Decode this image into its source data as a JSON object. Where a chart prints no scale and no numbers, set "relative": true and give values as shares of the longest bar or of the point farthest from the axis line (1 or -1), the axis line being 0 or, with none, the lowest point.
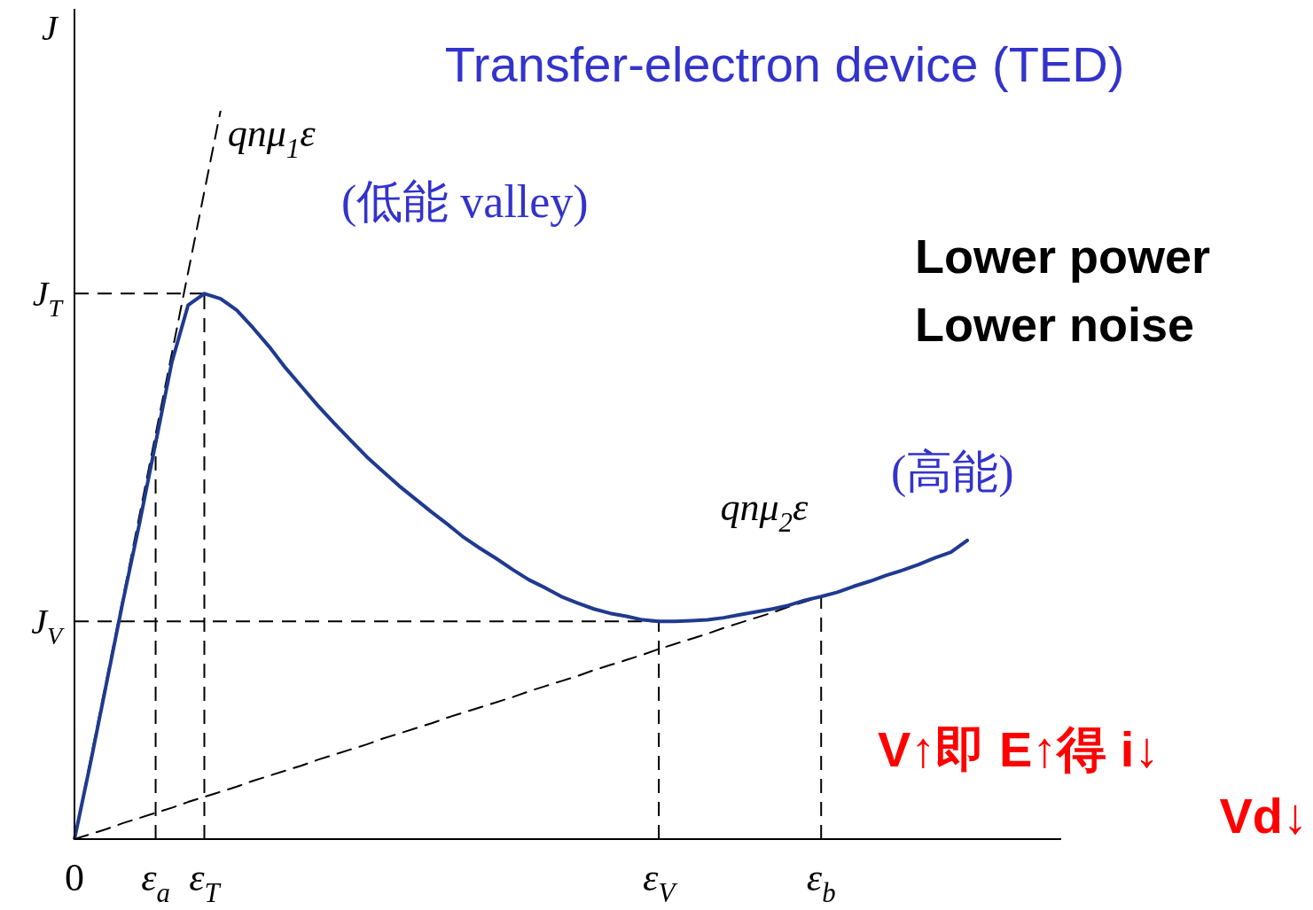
{
  "chart_data": {
    "type": "line",
    "relative": true,
    "title": "Transfer-electron device (TED)",
    "ylabel": "J",
    "legend": false,
    "grid": false,
    "marker": "none",
    "categories": [
      "0",
      null,
      null,
      null,
      null,
      "ε$_{a}$",
      null,
      null,
      "ε$_{T}$",
      null,
      null,
      null,
      null,
      null,
      null,
      null,
      null,
      null,
      null,
      null,
      null,
      null,
      null,
      null,
      null,
      null,
      null,
      null,
      null,
      null,
      null,
      null,
      null,
      null,
      null,
      null,
      "ε$_{V}$",
      null,
      null,
      null,
      null,
      null,
      null,
      null,
      null,
      null,
      "ε$_{b}$",
      null,
      null,
      null,
      null,
      null,
      null,
      null,
      null,
      null
    ],
    "series": [
      {
        "color": "#1f3a8f",
        "line_style": "solid",
        "values": [
          0,
          0.106,
          0.217,
          0.328,
          0.433,
          0.544,
          0.655,
          0.733,
          0.749,
          0.742,
          0.726,
          0.702,
          0.676,
          0.647,
          0.621,
          0.595,
          0.571,
          0.548,
          0.525,
          0.505,
          0.485,
          0.467,
          0.449,
          0.432,
          0.414,
          0.399,
          0.385,
          0.37,
          0.356,
          0.345,
          0.333,
          0.324,
          0.316,
          0.31,
          0.306,
          0.301,
          0.299,
          0.299,
          0.3,
          0.301,
          0.304,
          0.308,
          0.312,
          0.316,
          0.321,
          0.328,
          0.333,
          0.339,
          0.347,
          0.354,
          0.362,
          0.369,
          0.377,
          0.386,
          0.394,
          0.41
        ]
      },
      {
        "name": "qnμ$_{1}$ε",
        "color": "#000000",
        "line_style": "dashed",
        "values": [
          0,
          0.111,
          0.222,
          0.333,
          0.444,
          0.556,
          0.667,
          0.778,
          0.889,
          1,
          null,
          null,
          null,
          null,
          null,
          null,
          null,
          null,
          null,
          null,
          null,
          null,
          null,
          null,
          null,
          null,
          null,
          null,
          null,
          null,
          null,
          null,
          null,
          null,
          null,
          null,
          null,
          null,
          null,
          null,
          null,
          null,
          null,
          null,
          null,
          null,
          null,
          null,
          null,
          null,
          null,
          null,
          null,
          null,
          null,
          null
        ]
      },
      {
        "name": "qnμ$_{2}$ε",
        "color": "#000000",
        "line_style": "dashed",
        "values": [
          0,
          0.007,
          0.014,
          0.022,
          0.029,
          0.036,
          0.043,
          0.051,
          0.058,
          0.065,
          0.072,
          0.08,
          0.087,
          0.094,
          0.101,
          0.109,
          0.116,
          0.123,
          0.13,
          0.138,
          0.145,
          0.152,
          0.159,
          0.167,
          0.174,
          0.181,
          0.188,
          0.195,
          0.203,
          0.21,
          0.217,
          0.224,
          0.232,
          0.239,
          0.246,
          0.253,
          0.261,
          0.268,
          0.275,
          0.282,
          0.29,
          0.297,
          0.304,
          0.311,
          0.319,
          0.326,
          0.333,
          null,
          null,
          null,
          null,
          null,
          null,
          null,
          null,
          null
        ]
      }
    ],
    "ref_lines": [
      {
        "axis": "y",
        "value": 0.749,
        "label": "J$_{T}$",
        "color": "#000000",
        "line_style": "dashed"
      },
      {
        "axis": "y",
        "value": 0.299,
        "label": "J$_{V}$",
        "color": "#000000",
        "line_style": "dashed"
      },
      {
        "axis": "x",
        "value": "ε$_{a}$",
        "color": "#000000",
        "line_style": "dashed"
      },
      {
        "axis": "x",
        "value": "ε$_{T}$",
        "color": "#000000",
        "line_style": "dashed"
      },
      {
        "axis": "x",
        "value": "ε$_{V}$",
        "color": "#000000",
        "line_style": "dashed"
      },
      {
        "axis": "x",
        "value": "ε$_{b}$",
        "color": "#000000",
        "line_style": "dashed"
      }
    ],
    "annotations": [
      "(低能 valley)",
      "Lower power",
      "Lower noise",
      "(高能)",
      "V↑即 E↑得 i↓",
      "Vd↓"
    ]
  }
}
